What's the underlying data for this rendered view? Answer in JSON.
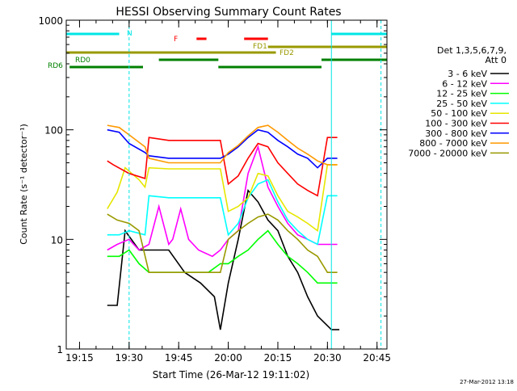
{
  "chart_data": {
    "type": "line",
    "title": "HESSI Observing Summary Count Rates",
    "xlabel": "Start Time (26-Mar-12 19:11:02)",
    "ylabel": "Count Rate (s⁻¹ detector⁻¹)",
    "yscale": "log",
    "ylim": [
      1,
      1000
    ],
    "xlim": [
      19.183,
      20.8
    ],
    "x_unit": "hour of day (UT)",
    "x_ticks": [
      {
        "v": 19.25,
        "label": "19:15"
      },
      {
        "v": 19.5,
        "label": "19:30"
      },
      {
        "v": 19.75,
        "label": "19:45"
      },
      {
        "v": 20.0,
        "label": "20:00"
      },
      {
        "v": 20.25,
        "label": "20:15"
      },
      {
        "v": 20.5,
        "label": "20:30"
      },
      {
        "v": 20.75,
        "label": "20:45"
      }
    ],
    "y_ticks": [
      {
        "v": 1,
        "label": "1"
      },
      {
        "v": 10,
        "label": "10"
      },
      {
        "v": 100,
        "label": "100"
      },
      {
        "v": 1000,
        "label": "1000"
      }
    ],
    "legend_title": [
      "Det 1,3,5,6,7,9,",
      "Att 0"
    ],
    "legend_placement": "right",
    "timestamp": "27-Mar-2012 13:18",
    "series": [
      {
        "name": "3 - 6 keV",
        "color": "#000000",
        "x": [
          19.39,
          19.44,
          19.48,
          19.55,
          19.62,
          19.7,
          19.78,
          19.86,
          19.93,
          19.96,
          20.0,
          20.05,
          20.1,
          20.15,
          20.2,
          20.25,
          20.3,
          20.35,
          20.4,
          20.45,
          20.52,
          20.56
        ],
        "y": [
          2.5,
          2.5,
          12,
          8,
          8,
          8,
          5,
          4,
          3,
          1.5,
          4,
          10,
          28,
          22,
          15,
          12,
          7,
          5,
          3,
          2,
          1.5,
          1.5
        ]
      },
      {
        "name": "6 - 12 keV",
        "color": "#ff00ff",
        "x": [
          19.39,
          19.44,
          19.5,
          19.55,
          19.6,
          19.65,
          19.7,
          19.72,
          19.76,
          19.8,
          19.85,
          19.92,
          19.96,
          20.0,
          20.05,
          20.1,
          20.15,
          20.2,
          20.25,
          20.3,
          20.35,
          20.4,
          20.45,
          20.5,
          20.55
        ],
        "y": [
          8,
          9,
          10,
          8,
          9,
          20,
          9,
          10,
          19,
          10,
          8,
          7,
          8,
          10,
          12,
          40,
          70,
          30,
          20,
          14,
          11,
          10,
          9,
          9,
          9
        ]
      },
      {
        "name": "12 - 25 keV",
        "color": "#00ff00",
        "x": [
          19.39,
          19.45,
          19.5,
          19.55,
          19.6,
          19.7,
          19.8,
          19.9,
          19.96,
          20.0,
          20.05,
          20.1,
          20.15,
          20.2,
          20.25,
          20.3,
          20.35,
          20.4,
          20.45,
          20.5,
          20.55
        ],
        "y": [
          7,
          7,
          8,
          6,
          5,
          5,
          5,
          5,
          6,
          6,
          7,
          8,
          10,
          12,
          9,
          7,
          6,
          5,
          4,
          4,
          4
        ]
      },
      {
        "name": "25 - 50 keV",
        "color": "#00ffff",
        "x": [
          19.39,
          19.45,
          19.5,
          19.58,
          19.6,
          19.7,
          19.8,
          19.9,
          19.96,
          20.0,
          20.05,
          20.1,
          20.15,
          20.2,
          20.25,
          20.3,
          20.35,
          20.4,
          20.45,
          20.5,
          20.55
        ],
        "y": [
          11,
          11,
          12,
          11,
          25,
          24,
          24,
          24,
          24,
          11,
          14,
          24,
          32,
          35,
          22,
          15,
          12,
          10,
          9,
          25,
          25
        ]
      },
      {
        "name": "50 - 100 keV",
        "color": "#e6e600",
        "x": [
          19.39,
          19.44,
          19.48,
          19.55,
          19.58,
          19.6,
          19.7,
          19.8,
          19.9,
          19.96,
          20.0,
          20.05,
          20.1,
          20.15,
          20.2,
          20.25,
          20.3,
          20.35,
          20.4,
          20.45,
          20.5,
          20.55
        ],
        "y": [
          19,
          27,
          45,
          35,
          30,
          45,
          44,
          44,
          44,
          44,
          18,
          20,
          24,
          40,
          38,
          25,
          18,
          16,
          14,
          12,
          48,
          48
        ]
      },
      {
        "name": "100 - 300 keV",
        "color": "#ff0000",
        "x": [
          19.39,
          19.42,
          19.5,
          19.58,
          19.6,
          19.7,
          19.8,
          19.9,
          19.96,
          20.0,
          20.05,
          20.1,
          20.15,
          20.2,
          20.25,
          20.3,
          20.35,
          20.4,
          20.45,
          20.5,
          20.55
        ],
        "y": [
          52,
          48,
          40,
          36,
          85,
          80,
          80,
          80,
          80,
          32,
          38,
          55,
          75,
          70,
          50,
          40,
          32,
          28,
          25,
          85,
          85
        ]
      },
      {
        "name": "300 - 800 keV",
        "color": "#0000ff",
        "x": [
          19.39,
          19.45,
          19.5,
          19.58,
          19.6,
          19.7,
          19.8,
          19.9,
          19.96,
          20.0,
          20.05,
          20.1,
          20.15,
          20.2,
          20.25,
          20.3,
          20.35,
          20.4,
          20.45,
          20.5,
          20.55
        ],
        "y": [
          100,
          95,
          75,
          62,
          58,
          55,
          55,
          55,
          55,
          60,
          70,
          85,
          100,
          95,
          80,
          70,
          60,
          55,
          45,
          55,
          55
        ]
      },
      {
        "name": "800 - 7000 keV",
        "color": "#ff9900",
        "x": [
          19.39,
          19.45,
          19.5,
          19.58,
          19.6,
          19.7,
          19.8,
          19.9,
          19.96,
          20.0,
          20.05,
          20.1,
          20.15,
          20.2,
          20.25,
          20.3,
          20.35,
          20.4,
          20.45,
          20.5,
          20.55
        ],
        "y": [
          110,
          105,
          90,
          70,
          55,
          50,
          50,
          50,
          50,
          62,
          72,
          88,
          105,
          110,
          95,
          80,
          68,
          60,
          52,
          48,
          48
        ]
      },
      {
        "name": "7000 - 20000 keV",
        "color": "#999900",
        "x": [
          19.39,
          19.44,
          19.5,
          19.55,
          19.6,
          19.7,
          19.8,
          19.9,
          19.96,
          20.0,
          20.05,
          20.1,
          20.15,
          20.2,
          20.25,
          20.3,
          20.35,
          20.4,
          20.45,
          20.5,
          20.55
        ],
        "y": [
          17,
          15,
          14,
          12,
          5,
          5,
          5,
          5,
          5,
          10,
          12,
          14,
          16,
          17,
          15,
          12,
          10,
          8,
          7,
          5,
          5
        ]
      }
    ],
    "annotations": [
      {
        "text": "N",
        "color": "#00e5e5",
        "x": 19.5
      },
      {
        "text": "F",
        "color": "#ff0000",
        "x": 19.8
      },
      {
        "text": "FD1",
        "color": "#999900",
        "x": 20.19
      },
      {
        "text": "FD2",
        "color": "#999900",
        "x": 20.29
      },
      {
        "text": "RD0",
        "color": "#008000",
        "x": 19.22
      },
      {
        "text": "RD6",
        "color": "#008000",
        "x": 19.12
      }
    ],
    "state_bars": [
      {
        "label": "N",
        "color": "#00e5e5",
        "segments": [
          [
            19.183,
            19.45
          ],
          [
            20.52,
            20.8
          ]
        ]
      },
      {
        "label": "F",
        "color": "#ff0000",
        "segments": [
          [
            19.84,
            19.89
          ],
          [
            20.08,
            20.2
          ]
        ]
      },
      {
        "label": "FD1",
        "color": "#999900",
        "segments": [
          [
            20.2,
            20.8
          ]
        ]
      },
      {
        "label": "FD2",
        "color": "#999900",
        "segments": [
          [
            19.183,
            20.24
          ]
        ]
      },
      {
        "label": "RD0",
        "color": "#008000",
        "segments": [
          [
            19.65,
            19.95
          ],
          [
            20.47,
            20.8
          ]
        ]
      },
      {
        "label": "RD6",
        "color": "#008000",
        "segments": [
          [
            19.2,
            19.57
          ],
          [
            19.95,
            20.47
          ]
        ]
      }
    ],
    "vertical_lines": [
      {
        "x": 19.183,
        "style": "solid",
        "color": "#00e5e5"
      },
      {
        "x": 19.5,
        "style": "dashed",
        "color": "#00e5e5"
      },
      {
        "x": 20.52,
        "style": "solid",
        "color": "#00e5e5"
      },
      {
        "x": 20.77,
        "style": "dashed",
        "color": "#00e5e5"
      }
    ]
  }
}
